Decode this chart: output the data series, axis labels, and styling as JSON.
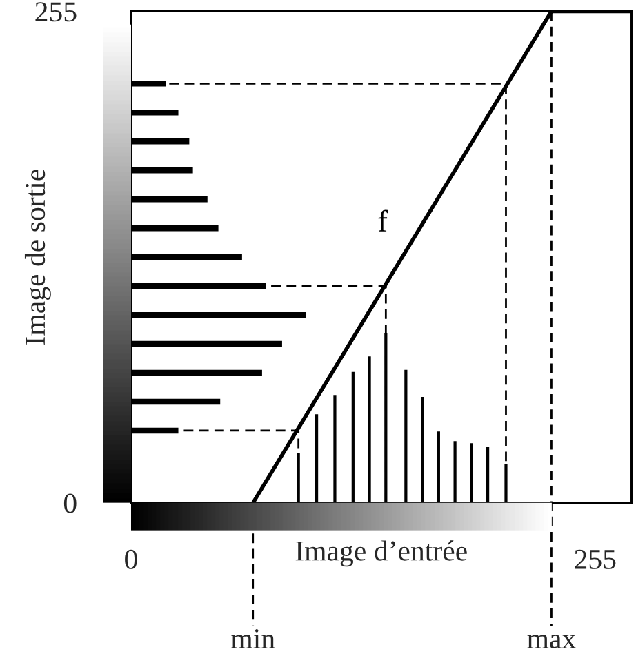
{
  "chart_data": [
    {
      "type": "line",
      "xlabel": "Image d’entrée",
      "ylabel": "Image de sortie",
      "xlim": [
        0,
        275
      ],
      "ylim": [
        0,
        255
      ],
      "xticks": [
        0,
        255
      ],
      "yticks": [
        0,
        255
      ],
      "grid": false,
      "line_style": "solid",
      "ref_lines": [
        {
          "axis": "x",
          "value": 67,
          "label": "min",
          "line_style": "dashed",
          "color": "#000000"
        },
        {
          "axis": "x",
          "value": 231,
          "label": "max",
          "line_style": "dashed",
          "color": "#000000"
        }
      ],
      "series": [
        {
          "name": "f",
          "color": "#000000",
          "x": [
            67,
            231,
            275
          ],
          "values": [
            0,
            255,
            255
          ]
        },
        {
          "type": "bar",
          "color": "#000000",
          "x": [
            92,
            102,
            112,
            122,
            131,
            140,
            151,
            160,
            169,
            178,
            187,
            196,
            206
          ],
          "values": [
            26,
            46,
            56,
            68,
            76,
            88,
            69,
            55,
            37,
            32,
            31,
            29,
            20
          ]
        },
        {
          "type": "line",
          "color": "#000000",
          "line_style": "dashed",
          "x": [
            21,
            206,
            206
          ],
          "values": [
            217.5,
            217.5,
            0
          ]
        },
        {
          "type": "line",
          "color": "#000000",
          "line_style": "dashed",
          "x": [
            77,
            140,
            140
          ],
          "values": [
            112.5,
            112.5,
            0
          ]
        },
        {
          "type": "line",
          "color": "#000000",
          "line_style": "dashed",
          "x": [
            29,
            92,
            92
          ],
          "values": [
            37.5,
            37.5,
            0
          ]
        }
      ]
    },
    {
      "type": "bar",
      "orientation": "horizontal",
      "xlim": [
        0,
        275
      ],
      "categories": [
        null,
        null,
        null,
        null,
        null,
        null,
        null,
        null,
        null,
        null,
        null,
        null,
        null,
        null,
        null,
        null,
        null
      ],
      "series": [
        {
          "color": "#000000",
          "values": [
            null,
            null,
            19,
            26,
            32,
            34,
            42,
            48,
            61,
            74,
            96,
            83,
            72,
            49,
            26,
            null,
            null
          ]
        }
      ]
    }
  ]
}
